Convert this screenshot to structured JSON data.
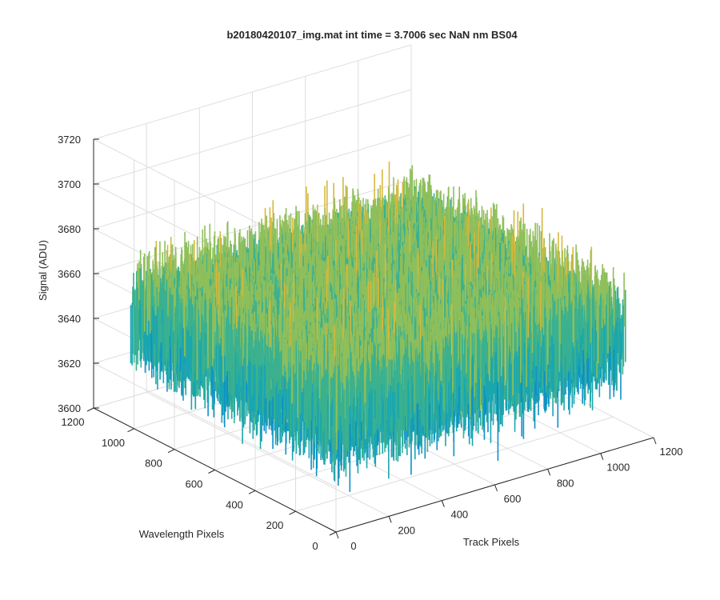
{
  "chart_data": {
    "type": "surface",
    "title": "b20180420107_img.mat int time = 3.7006 sec  NaN nm BS04",
    "xlabel": "Track Pixels",
    "ylabel": "Wavelength Pixels",
    "zlabel": "Signal (ADU)",
    "xlim": [
      0,
      1200
    ],
    "ylim": [
      0,
      1200
    ],
    "zlim": [
      3600,
      3720
    ],
    "xticks": [
      "0",
      "200",
      "400",
      "600",
      "800",
      "1000",
      "1200"
    ],
    "yticks": [
      "0",
      "200",
      "400",
      "600",
      "800",
      "1000",
      "1200"
    ],
    "zticks": [
      "3600",
      "3620",
      "3640",
      "3660",
      "3680",
      "3700",
      "3720"
    ],
    "grid": true,
    "view": "3-D isometric, azimuth -37.5 deg, elevation 30 deg",
    "colormap": [
      "#0f5bd6",
      "#0d8fc8",
      "#1aa6b0",
      "#3bb18f",
      "#8fbf5a",
      "#d6b83c",
      "#f2b62a"
    ],
    "surface_summary": {
      "x_range": [
        0,
        1100
      ],
      "y_range": [
        0,
        1024
      ],
      "mean_signal": 3650,
      "signal_min": 3625,
      "signal_max": 3705
    }
  }
}
